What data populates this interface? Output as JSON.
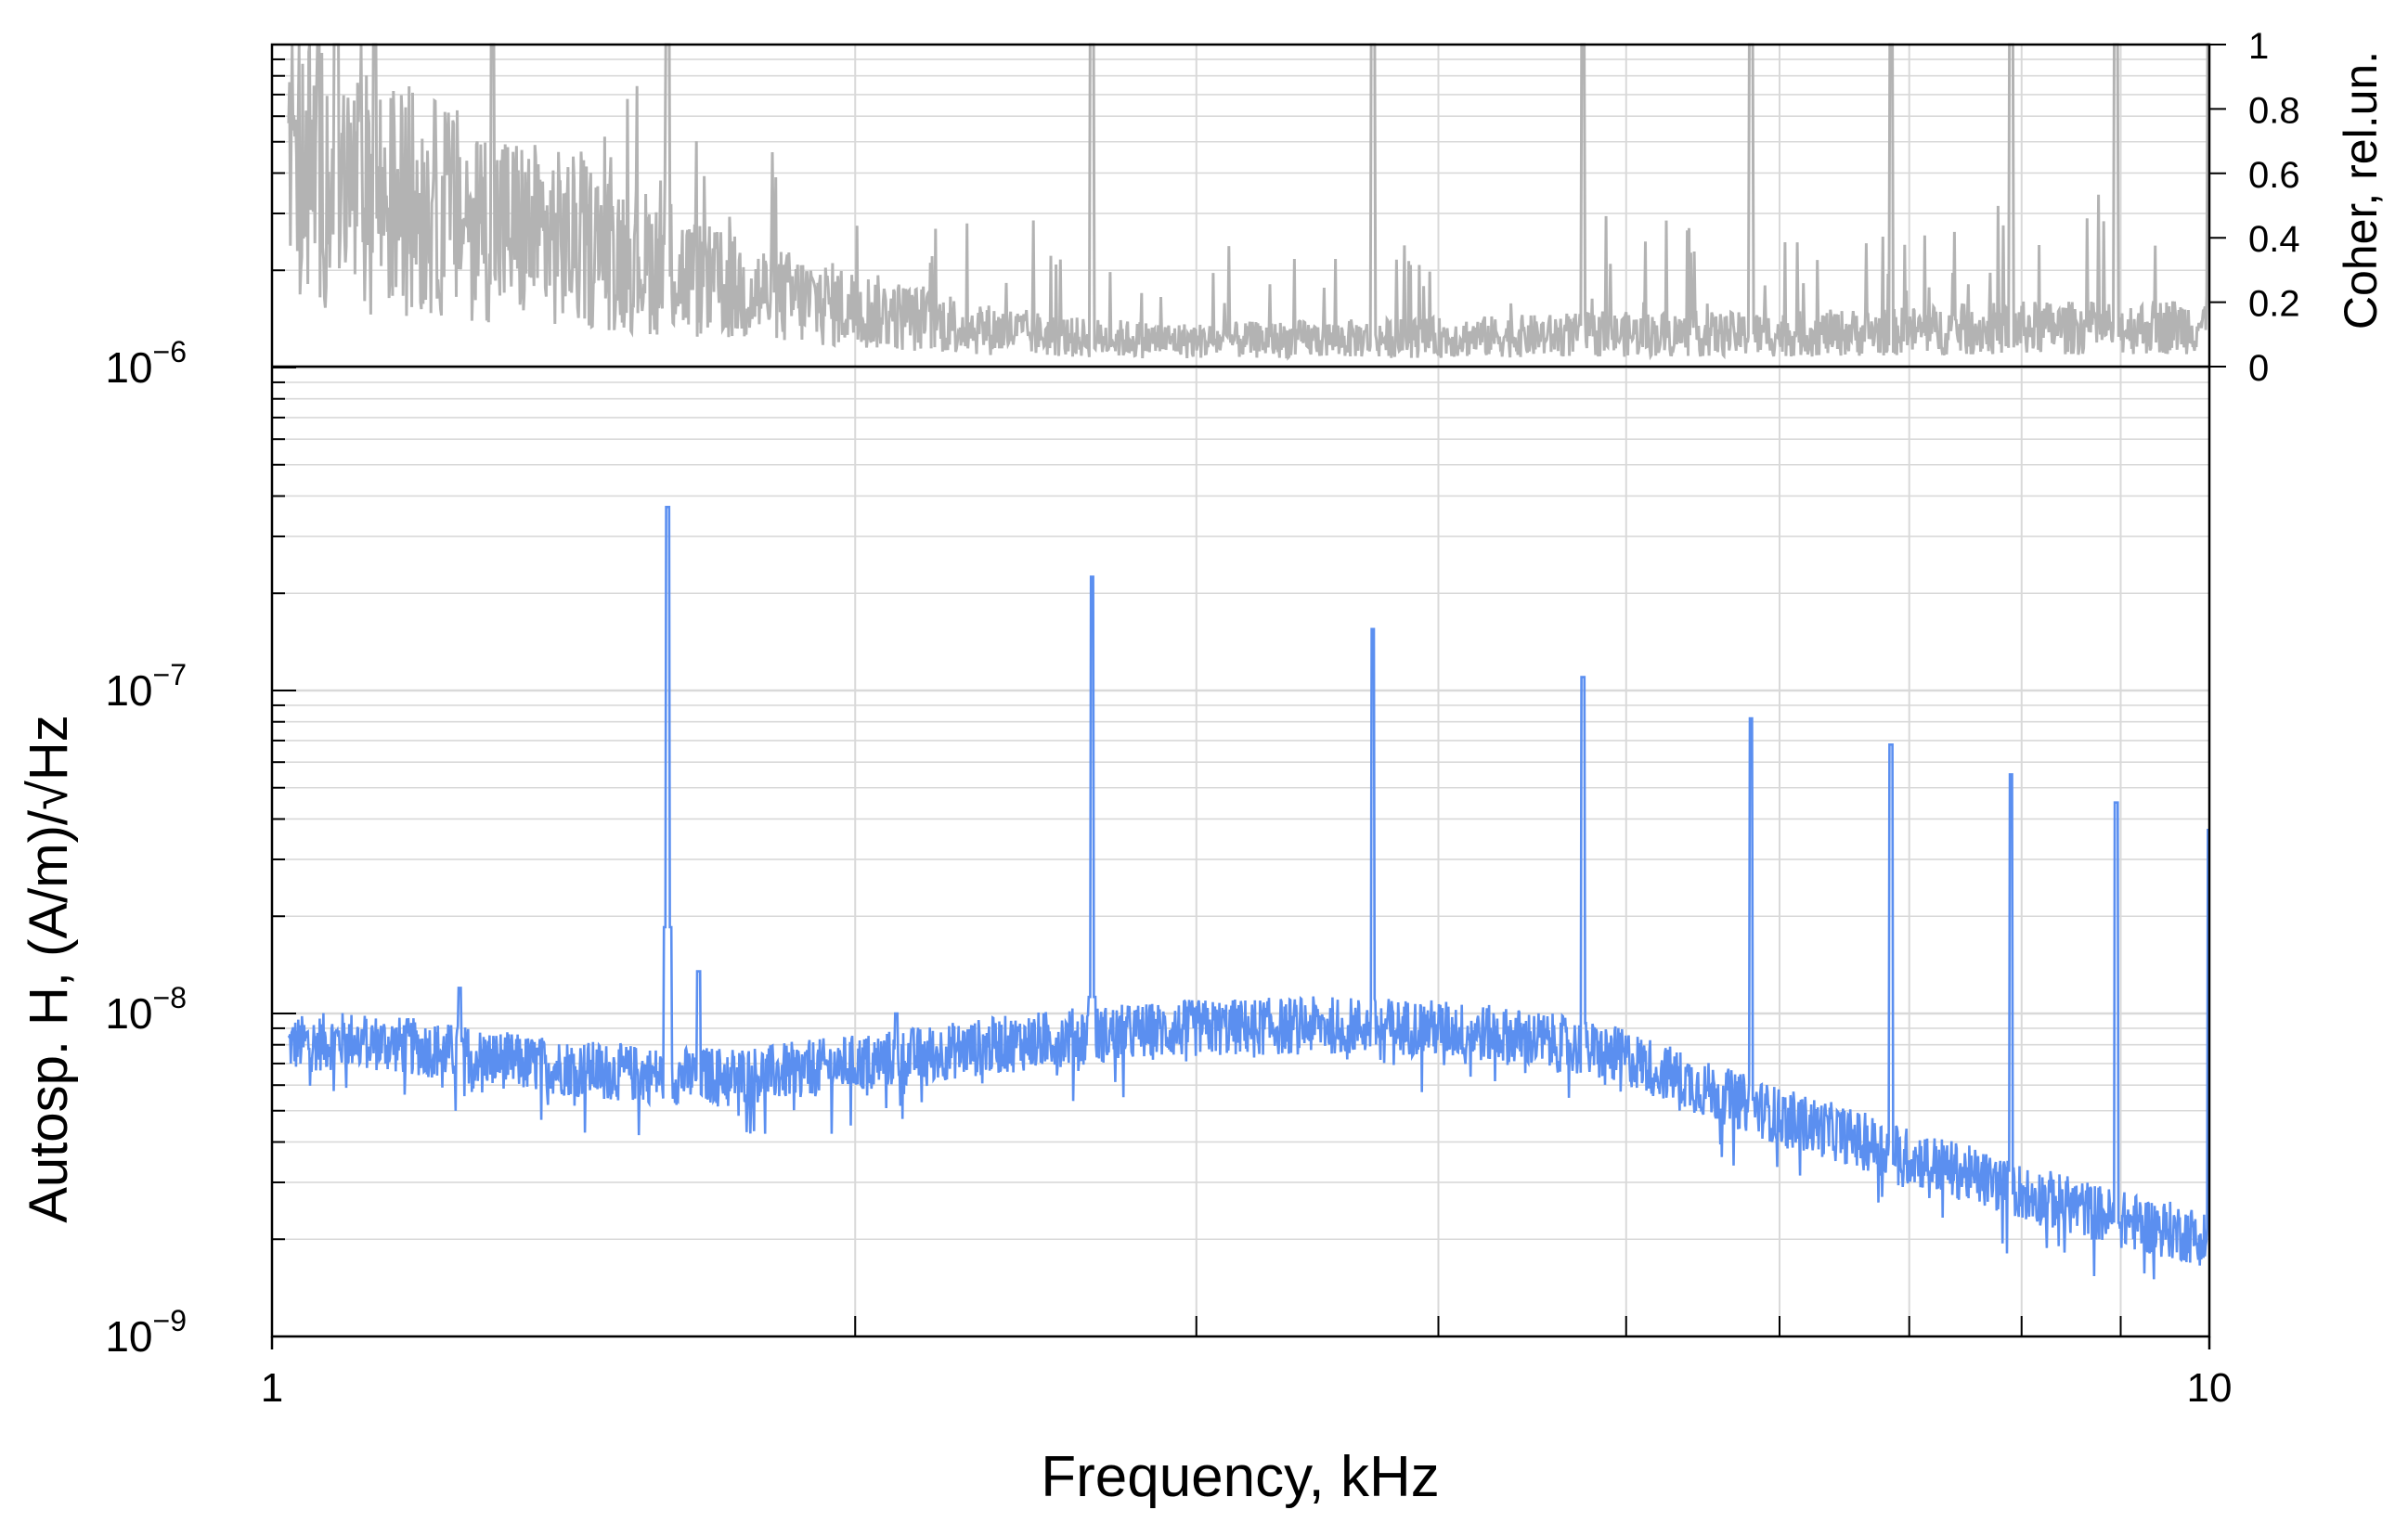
{
  "chart_data": {
    "type": "line",
    "xlabel": "Frequency, kHz",
    "ylabel_left": "Autosp. H, (A/m)/√Hz",
    "ylabel_right": "Coher, rel.un.",
    "x_scale": "log",
    "xlim": [
      1,
      10
    ],
    "x_tick_labels": [
      "1",
      "10"
    ],
    "y_left_scale": "log",
    "y_left_lim": [
      1e-09,
      1e-05
    ],
    "y_left_tick_labels": [
      {
        "base": "10",
        "exp": "−9"
      },
      {
        "base": "10",
        "exp": "−8"
      },
      {
        "base": "10",
        "exp": "−7"
      },
      {
        "base": "10",
        "exp": "−6"
      }
    ],
    "y_right_lim": [
      0,
      1
    ],
    "y_right_tick_labels": [
      "0",
      "0.2",
      "0.4",
      "0.6",
      "0.8",
      "1"
    ],
    "grid": true,
    "colors": {
      "autospectrum": "#5b8ff0",
      "coherence": "#b3b3b3",
      "grid": "#d9d9d9"
    },
    "series": [
      {
        "color": "#5b8ff0",
        "axis": "left",
        "baseline": [
          [
            1.02,
            8e-09
          ],
          [
            1.1,
            8.3e-09
          ],
          [
            1.2,
            7.8e-09
          ],
          [
            1.35,
            7e-09
          ],
          [
            1.5,
            6.6e-09
          ],
          [
            1.6,
            6.4e-09
          ],
          [
            1.8,
            6.5e-09
          ],
          [
            2.0,
            7e-09
          ],
          [
            2.3,
            7.8e-09
          ],
          [
            2.6,
            8.5e-09
          ],
          [
            3.0,
            9e-09
          ],
          [
            3.5,
            9.2e-09
          ],
          [
            4.0,
            9e-09
          ],
          [
            4.5,
            8.3e-09
          ],
          [
            5.0,
            7.3e-09
          ],
          [
            5.5,
            5.8e-09
          ],
          [
            6.0,
            4.8e-09
          ],
          [
            7.0,
            3.6e-09
          ],
          [
            8.0,
            2.8e-09
          ],
          [
            9.0,
            2.3e-09
          ],
          [
            10.0,
            2e-09
          ]
        ],
        "peaks": [
          {
            "x": 1.6,
            "y": 3.7e-07
          },
          {
            "x": 2.65,
            "y": 2.25e-07
          },
          {
            "x": 3.7,
            "y": 1.55e-07
          },
          {
            "x": 4.75,
            "y": 1.1e-07
          },
          {
            "x": 5.8,
            "y": 8.2e-08
          },
          {
            "x": 6.85,
            "y": 6.8e-08
          },
          {
            "x": 7.9,
            "y": 5.5e-08
          },
          {
            "x": 8.95,
            "y": 4.5e-08
          },
          {
            "x": 10.0,
            "y": 3.7e-08
          },
          {
            "x": 1.25,
            "y": 1.2e-08
          },
          {
            "x": 1.66,
            "y": 1.35e-08
          },
          {
            "x": 2.1,
            "y": 1e-08
          }
        ]
      },
      {
        "color": "#b3b3b3",
        "axis": "right",
        "baseline": [
          [
            1.02,
            0.66
          ],
          [
            1.1,
            0.55
          ],
          [
            1.2,
            0.5
          ],
          [
            1.35,
            0.42
          ],
          [
            1.5,
            0.36
          ],
          [
            1.7,
            0.25
          ],
          [
            2.0,
            0.18
          ],
          [
            2.3,
            0.12
          ],
          [
            2.6,
            0.09
          ],
          [
            3.0,
            0.08
          ],
          [
            4.0,
            0.09
          ],
          [
            5.0,
            0.1
          ],
          [
            6.0,
            0.1
          ],
          [
            7.0,
            0.11
          ],
          [
            8.0,
            0.12
          ],
          [
            9.0,
            0.12
          ],
          [
            10.0,
            0.13
          ]
        ],
        "peaks": [
          {
            "x": 1.08,
            "y": 1.0
          },
          {
            "x": 1.13,
            "y": 1.0
          },
          {
            "x": 1.3,
            "y": 1.0
          },
          {
            "x": 1.6,
            "y": 1.0
          },
          {
            "x": 2.65,
            "y": 1.0
          },
          {
            "x": 3.7,
            "y": 1.0
          },
          {
            "x": 4.75,
            "y": 1.0
          },
          {
            "x": 5.8,
            "y": 1.0
          },
          {
            "x": 6.85,
            "y": 1.0
          },
          {
            "x": 7.9,
            "y": 1.0
          },
          {
            "x": 8.95,
            "y": 1.0
          },
          {
            "x": 10.0,
            "y": 1.0
          }
        ]
      }
    ]
  }
}
